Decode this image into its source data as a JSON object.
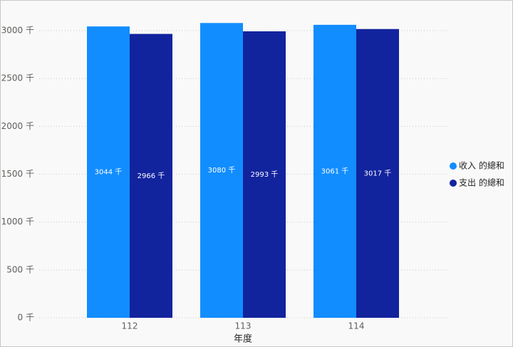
{
  "chart_data": {
    "type": "bar",
    "categories": [
      "112",
      "113",
      "114"
    ],
    "x_label": "年度",
    "series": [
      {
        "name": "收入 的總和",
        "color": "#118DFF",
        "values": [
          3044,
          3080,
          3061
        ],
        "value_labels": [
          "3044 千",
          "3080 千",
          "3061 千"
        ]
      },
      {
        "name": "支出 的總和",
        "color": "#12239E",
        "values": [
          2966,
          2993,
          3017
        ],
        "value_labels": [
          "2966 千",
          "2993 千",
          "3017 千"
        ]
      }
    ],
    "ylim": [
      0,
      3100
    ],
    "yticks": [
      {
        "value": 0,
        "label": "0 千"
      },
      {
        "value": 500,
        "label": "500 千"
      },
      {
        "value": 1000,
        "label": "1000 千"
      },
      {
        "value": 1500,
        "label": "1500 千"
      },
      {
        "value": 2000,
        "label": "2000 千"
      },
      {
        "value": 2500,
        "label": "2500 千"
      },
      {
        "value": 3000,
        "label": "3000 千"
      }
    ],
    "grid": true,
    "legend": "right"
  }
}
